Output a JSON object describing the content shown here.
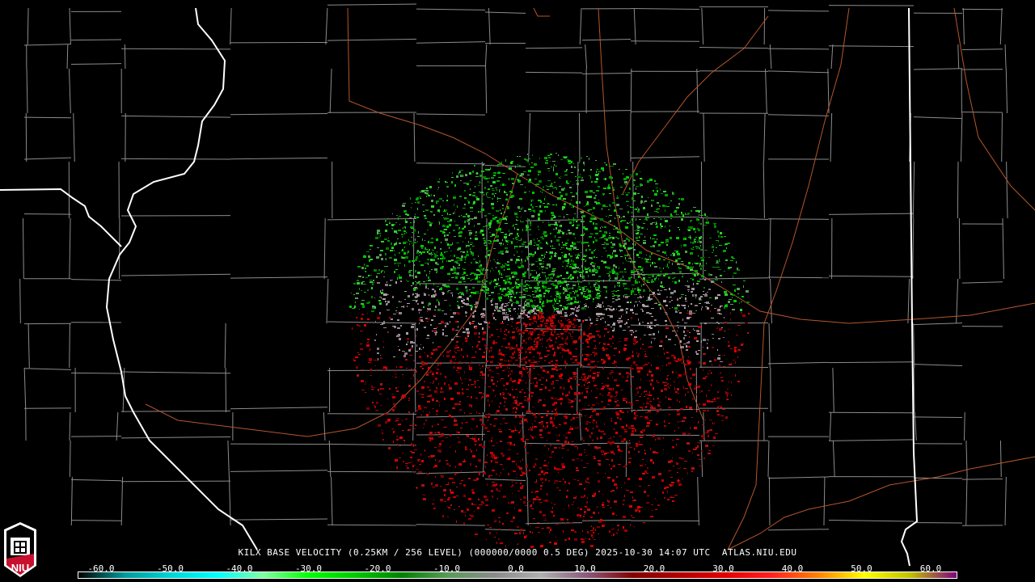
{
  "product": {
    "caption": "KILX BASE VELOCITY (0.25KM / 256 LEVEL) (000000/0000 0.5 DEG) 2025-10-30 14:07 UTC  ATLAS.NIU.EDU"
  },
  "logo": {
    "text": "NIU",
    "color": "#c8102e"
  },
  "colorbar": {
    "ticks": [
      "-60.0",
      "-50.0",
      "-40.0",
      "-30.0",
      "-20.0",
      "-10.0",
      "0.0",
      "10.0",
      "20.0",
      "30.0",
      "40.0",
      "50.0",
      "60.0"
    ],
    "stops": [
      "#000000",
      "#009a9a",
      "#00d4d4",
      "#00ffff",
      "#7fffa0",
      "#00ff00",
      "#00c800",
      "#008000",
      "#5a9a5a",
      "#8a8a8a",
      "#b0b0b0",
      "#8a5a7a",
      "#800000",
      "#b00000",
      "#e00000",
      "#ff2020",
      "#ff8000",
      "#ffff00",
      "#c0c000",
      "#800080"
    ]
  },
  "colors": {
    "county_lines": "#8c8c8c",
    "state_lines": "#ffffff",
    "highways": "#b5562a",
    "inbound": "#00c800",
    "outbound": "#c00000",
    "near_zero": "#a08c98"
  },
  "radar": {
    "site": "KILX"
  }
}
